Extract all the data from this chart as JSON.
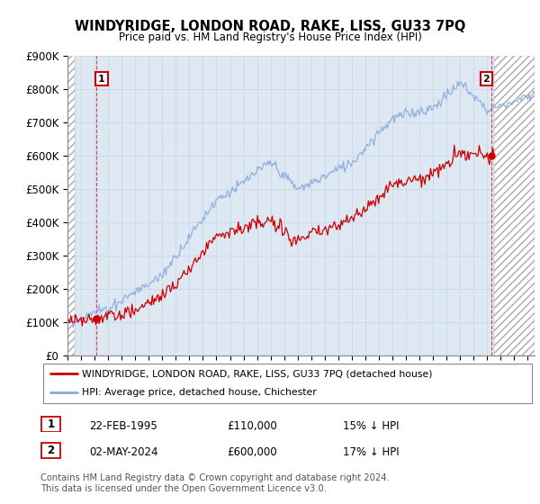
{
  "title": "WINDYRIDGE, LONDON ROAD, RAKE, LISS, GU33 7PQ",
  "subtitle": "Price paid vs. HM Land Registry's House Price Index (HPI)",
  "ylabel_ticks": [
    "£0",
    "£100K",
    "£200K",
    "£300K",
    "£400K",
    "£500K",
    "£600K",
    "£700K",
    "£800K",
    "£900K"
  ],
  "ylim": [
    0,
    900000
  ],
  "xlim_start": 1993.0,
  "xlim_end": 2027.5,
  "hatch_color": "#cccccc",
  "hatch_pattern": "////",
  "grid_color": "#c8d8e8",
  "plot_bg": "#dde8f3",
  "sale1_x": 1995.13,
  "sale1_y": 110000,
  "sale2_x": 2024.33,
  "sale2_y": 600000,
  "sale_color": "#cc0000",
  "hpi_color": "#88aadd",
  "legend_label1": "WINDYRIDGE, LONDON ROAD, RAKE, LISS, GU33 7PQ (detached house)",
  "legend_label2": "HPI: Average price, detached house, Chichester",
  "ann1_label": "1",
  "ann2_label": "2",
  "ann1_date": "22-FEB-1995",
  "ann1_price": "£110,000",
  "ann1_hpi": "15% ↓ HPI",
  "ann2_date": "02-MAY-2024",
  "ann2_price": "£600,000",
  "ann2_hpi": "17% ↓ HPI",
  "footer": "Contains HM Land Registry data © Crown copyright and database right 2024.\nThis data is licensed under the Open Government Licence v3.0.",
  "xtick_years": [
    1993,
    1994,
    1995,
    1996,
    1997,
    1998,
    1999,
    2000,
    2001,
    2002,
    2003,
    2004,
    2005,
    2006,
    2007,
    2008,
    2009,
    2010,
    2011,
    2012,
    2013,
    2014,
    2015,
    2016,
    2017,
    2018,
    2019,
    2020,
    2021,
    2022,
    2023,
    2024,
    2025,
    2026,
    2027
  ]
}
